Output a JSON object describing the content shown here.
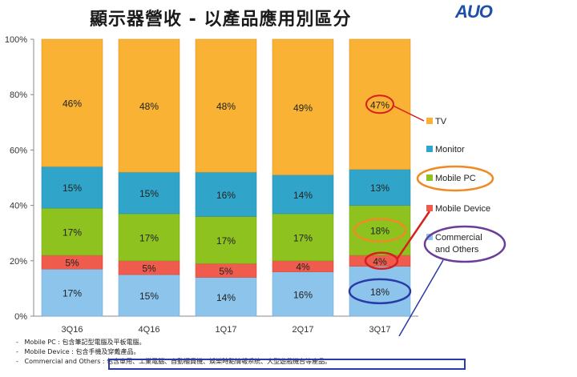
{
  "header": {
    "title": "顯示器營收 - 以產品應用別區分",
    "logo_text": "AUO"
  },
  "colors": {
    "TV": "#F9B233",
    "Monitor": "#31A5C9",
    "Mobile PC": "#8DC21F",
    "Mobile Device": "#EF5C4E",
    "Commercial and Others": "#8CC4EC",
    "highlight_red": "#D81E1E",
    "highlight_orange": "#F08A24",
    "highlight_purple": "#6A3D9A",
    "highlight_blue": "#2A3AA6"
  },
  "chart_data": {
    "type": "bar",
    "stacked": true,
    "categories": [
      "3Q16",
      "4Q16",
      "1Q17",
      "2Q17",
      "3Q17"
    ],
    "series": [
      {
        "name": "Commercial and Others",
        "values": [
          17,
          15,
          14,
          16,
          18
        ]
      },
      {
        "name": "Mobile Device",
        "values": [
          5,
          5,
          5,
          4,
          4
        ]
      },
      {
        "name": "Mobile PC",
        "values": [
          17,
          17,
          17,
          17,
          18
        ]
      },
      {
        "name": "Monitor",
        "values": [
          15,
          15,
          16,
          14,
          13
        ]
      },
      {
        "name": "TV",
        "values": [
          46,
          48,
          48,
          49,
          47
        ]
      }
    ],
    "data_labels": [
      [
        "17%",
        "5%",
        "17%",
        "15%",
        "46%"
      ],
      [
        "15%",
        "5%",
        "17%",
        "15%",
        "48%"
      ],
      [
        "14%",
        "5%",
        "17%",
        "16%",
        "48%"
      ],
      [
        "16%",
        "4%",
        "17%",
        "14%",
        "49%"
      ],
      [
        "18%",
        "4%",
        "18%",
        "13%",
        "47%"
      ]
    ],
    "yticks": [
      "0%",
      "20%",
      "40%",
      "60%",
      "80%",
      "100%"
    ],
    "ylim": [
      0,
      100
    ],
    "legend": [
      "TV",
      "Monitor",
      "Mobile PC",
      "Mobile Device",
      "Commercial and Others"
    ],
    "legend_position": "right",
    "grid": false
  },
  "notes": [
    "Mobile PC : 包含筆記型電腦及平板電腦。",
    "Mobile Device : 包含手機及穿戴產品。",
    "Commercial and Others : 包含車用、工業電腦、自動櫃員機、娛樂時點情報系統、大型遊戲機台等產品。"
  ]
}
